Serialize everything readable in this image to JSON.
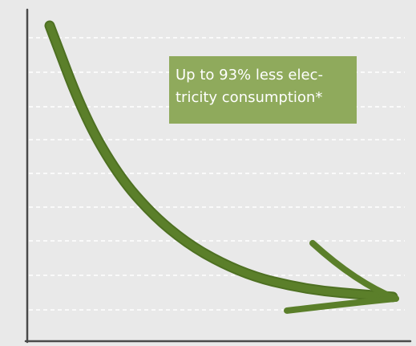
{
  "chart_data": {
    "type": "line",
    "title": "",
    "xlabel": "",
    "ylabel": "",
    "grid": true,
    "annotation": "Up to 93% less electricity consumption*",
    "annotation_display": "Up to 93% less elec-tricity consumption*",
    "series": [
      {
        "points": [
          {
            "x": 0.0,
            "y": 1.0
          },
          {
            "x": 0.1,
            "y": 0.68
          },
          {
            "x": 0.2,
            "y": 0.47
          },
          {
            "x": 0.3,
            "y": 0.33
          },
          {
            "x": 0.4,
            "y": 0.23
          },
          {
            "x": 0.5,
            "y": 0.16
          },
          {
            "x": 0.6,
            "y": 0.11
          },
          {
            "x": 0.7,
            "y": 0.08
          },
          {
            "x": 0.8,
            "y": 0.06
          },
          {
            "x": 0.9,
            "y": 0.05
          },
          {
            "x": 1.0,
            "y": 0.04
          }
        ]
      }
    ],
    "xlim": [
      0,
      1
    ],
    "ylim": [
      0,
      1
    ]
  },
  "colors": {
    "background": "#e9e9e9",
    "axis": "#4a4a4a",
    "grid": "#ffffff",
    "curve": "#5b7f2a",
    "annotation_bg": "#8faa5c",
    "annotation_text": "#ffffff"
  }
}
